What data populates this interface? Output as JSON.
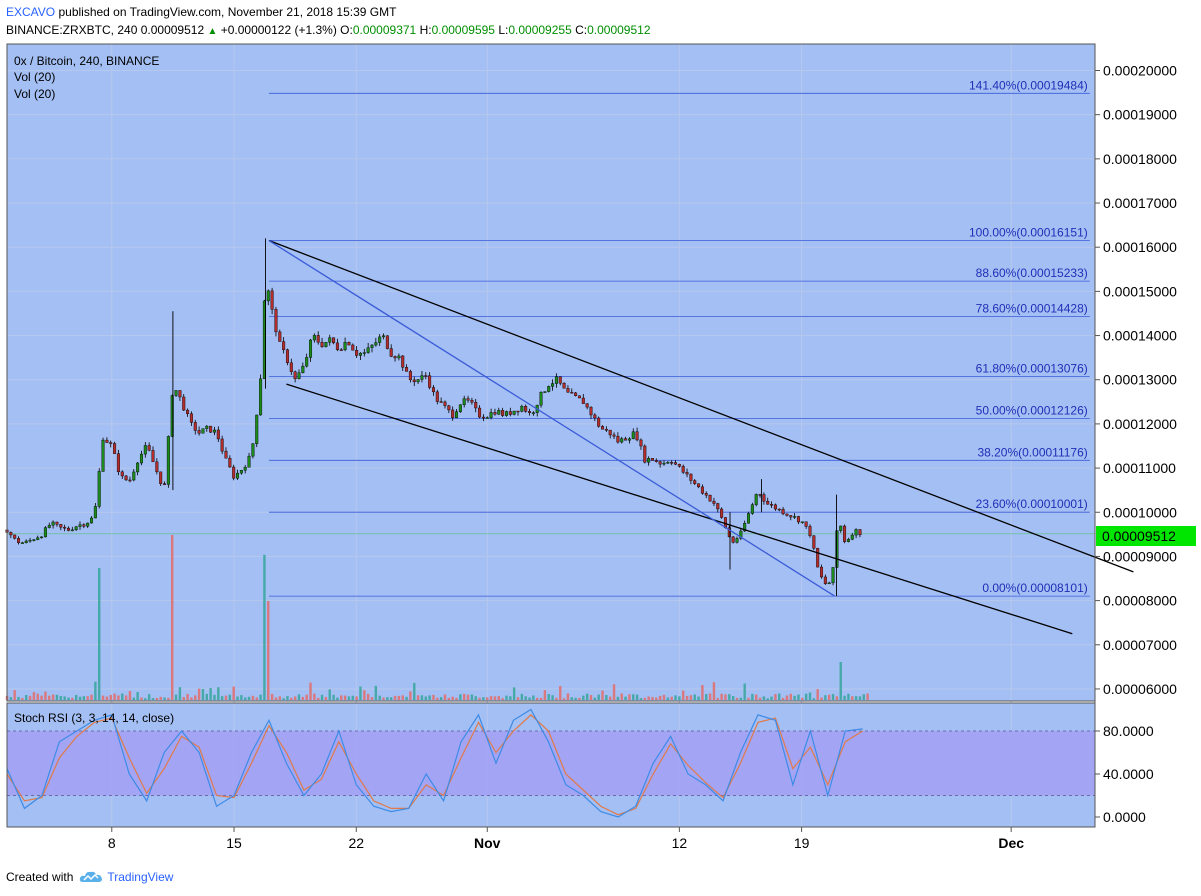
{
  "header": {
    "author": "EXCAVO",
    "published": "published on TradingView.com, November 21, 2018 15:39 GMT",
    "symbol": "BINANCE:ZRXBTC, 240",
    "price": "0.00009512",
    "change": "+0.00000122 (+1.3%)",
    "o_label": "O:",
    "o_value": "0.00009371",
    "h_label": "H:",
    "h_value": "0.00009595",
    "l_label": "L:",
    "l_value": "0.00009255",
    "c_label": "C:",
    "c_value": "0.00009512",
    "up_icon": "triangle-up-icon"
  },
  "legend": {
    "title": "0x / Bitcoin, 240, BINANCE",
    "vol1": "Vol (20)",
    "vol2": "Vol (20)",
    "rsi": "Stoch RSI (3, 3, 14, 14, close)"
  },
  "footer": {
    "created": "Created with",
    "brand": "TradingView",
    "logo_icon": "tradingview-cloud-icon"
  },
  "colors": {
    "background": "#a4bff3",
    "up": "#1b8a1b",
    "down": "#b32d2d",
    "fib": "#3a5bd8",
    "price_tag": "#00e600",
    "rsi_band": "#a3a0f3",
    "stoch_k": "#3d8be6",
    "stoch_d": "#e07a4a"
  },
  "chart_data": {
    "type": "candlestick",
    "y_axis": [
      "0.00020000",
      "0.00019000",
      "0.00018000",
      "0.00017000",
      "0.00016000",
      "0.00015000",
      "0.00014000",
      "0.00013000",
      "0.00012000",
      "0.00011000",
      "0.00010000",
      "0.00009000",
      "0.00008000",
      "0.00007000",
      "0.00006000"
    ],
    "ylim": [
      5.75e-05,
      0.000206
    ],
    "x_axis": [
      {
        "label": "8",
        "pos": 6
      },
      {
        "label": "15",
        "pos": 13
      },
      {
        "label": "22",
        "pos": 20
      },
      {
        "label": "Nov",
        "pos": 27.5
      },
      {
        "label": "12",
        "pos": 38.5
      },
      {
        "label": "19",
        "pos": 45.5
      },
      {
        "label": "Dec",
        "pos": 57.5
      }
    ],
    "last_price": "0.00009512",
    "last_price_value": 9.512e-05,
    "fibonacci": [
      {
        "label": "141.40%(0.00019484)",
        "value": 0.00019484
      },
      {
        "label": "100.00%(0.00016151)",
        "value": 0.00016151
      },
      {
        "label": "88.60%(0.00015233)",
        "value": 0.00015233
      },
      {
        "label": "78.60%(0.00014428)",
        "value": 0.00014428
      },
      {
        "label": "61.80%(0.00013076)",
        "value": 0.00013076
      },
      {
        "label": "50.00%(0.00012126)",
        "value": 0.00012126
      },
      {
        "label": "38.20%(0.00011176)",
        "value": 0.00011176
      },
      {
        "label": "23.60%(0.00010001)",
        "value": 0.00010001
      },
      {
        "label": "0.00%(0.00008101)",
        "value": 8.101e-05
      }
    ],
    "price_path": [
      [
        0,
        9.6e-05
      ],
      [
        0.5,
        9.35e-05
      ],
      [
        1,
        9.3e-05
      ],
      [
        1.5,
        9.4e-05
      ],
      [
        2,
        9.5e-05
      ],
      [
        2.5,
        9.75e-05
      ],
      [
        3,
        9.65e-05
      ],
      [
        3.5,
        9.6e-05
      ],
      [
        4,
        9.7e-05
      ],
      [
        4.5,
        9.75e-05
      ],
      [
        5,
        9.9e-05
      ],
      [
        5.5,
        0.000117
      ],
      [
        6,
        0.000115
      ],
      [
        6.5,
        0.000108
      ],
      [
        7,
        0.000107
      ],
      [
        7.5,
        0.000112
      ],
      [
        8,
        0.000115
      ],
      [
        8.5,
        0.00011
      ],
      [
        9,
        0.000105
      ],
      [
        9.5,
        0.000129
      ],
      [
        10,
        0.000125
      ],
      [
        10.5,
        0.00012
      ],
      [
        11,
        0.000118
      ],
      [
        11.5,
        0.000119
      ],
      [
        12,
        0.000118
      ],
      [
        12.5,
        0.000112
      ],
      [
        13,
        0.000108
      ],
      [
        13.5,
        0.00011
      ],
      [
        14,
        0.000113
      ],
      [
        14.5,
        0.000129
      ],
      [
        14.8,
        0.000153
      ],
      [
        15.2,
        0.000145
      ],
      [
        15.6,
        0.000138
      ],
      [
        16,
        0.000135
      ],
      [
        16.5,
        0.00013
      ],
      [
        17,
        0.000133
      ],
      [
        17.5,
        0.00014
      ],
      [
        18,
        0.000138
      ],
      [
        18.5,
        0.000139
      ],
      [
        19,
        0.000137
      ],
      [
        19.5,
        0.000139
      ],
      [
        20,
        0.000136
      ],
      [
        20.5,
        0.000136
      ],
      [
        21,
        0.000138
      ],
      [
        21.5,
        0.00014
      ],
      [
        22,
        0.000136
      ],
      [
        22.5,
        0.000135
      ],
      [
        23,
        0.00013
      ],
      [
        23.5,
        0.00013
      ],
      [
        24,
        0.000131
      ],
      [
        24.5,
        0.000126
      ],
      [
        25,
        0.000124
      ],
      [
        25.5,
        0.000122
      ],
      [
        26,
        0.000125
      ],
      [
        26.5,
        0.000125
      ],
      [
        27,
        0.000122
      ],
      [
        27.5,
        0.000122
      ],
      [
        28,
        0.000123
      ],
      [
        28.5,
        0.000122
      ],
      [
        29,
        0.000123
      ],
      [
        29.5,
        0.000124
      ],
      [
        30,
        0.000122
      ],
      [
        30.5,
        0.000126
      ],
      [
        31,
        0.000129
      ],
      [
        31.5,
        0.00013
      ],
      [
        32,
        0.000127
      ],
      [
        32.5,
        0.000126
      ],
      [
        33,
        0.000125
      ],
      [
        33.5,
        0.000122
      ],
      [
        34,
        0.000119
      ],
      [
        34.5,
        0.000118
      ],
      [
        35,
        0.000116
      ],
      [
        35.5,
        0.000117
      ],
      [
        36,
        0.000118
      ],
      [
        36.5,
        0.000112
      ],
      [
        37,
        0.000112
      ],
      [
        37.5,
        0.000111
      ],
      [
        38,
        0.000112
      ],
      [
        38.5,
        0.00011
      ],
      [
        39,
        0.000108
      ],
      [
        39.5,
        0.000106
      ],
      [
        40,
        0.000104
      ],
      [
        40.5,
        0.000102
      ],
      [
        41,
        9.8e-05
      ],
      [
        41.5,
        9.3e-05
      ],
      [
        42,
        9.5e-05
      ],
      [
        42.5,
        0.0001
      ],
      [
        43,
        0.000105
      ],
      [
        43.5,
        0.000102
      ],
      [
        44,
        0.000101
      ],
      [
        44.5,
        0.0001
      ],
      [
        45,
        9.9e-05
      ],
      [
        45.5,
        9.8e-05
      ],
      [
        46,
        9.5e-05
      ],
      [
        46.5,
        8.6e-05
      ],
      [
        47,
        8.3e-05
      ],
      [
        47.3,
        8.7e-05
      ],
      [
        47.6,
        9.9e-05
      ],
      [
        48,
        9.3e-05
      ],
      [
        48.5,
        9.6e-05
      ],
      [
        49,
        9.51e-05
      ]
    ],
    "channel_upper": [
      [
        15,
        0.00016151
      ],
      [
        64.5,
        8.65e-05
      ]
    ],
    "channel_lower": [
      [
        16,
        0.000129
      ],
      [
        61,
        7.25e-05
      ]
    ],
    "fib_diagonal": [
      [
        15,
        0.00016151
      ],
      [
        47.4,
        8.101e-05
      ]
    ],
    "volume_spikes": [
      [
        5.3,
        0.8
      ],
      [
        9.5,
        1.0
      ],
      [
        14.7,
        0.88
      ],
      [
        14.9,
        0.6
      ],
      [
        47.7,
        0.23
      ],
      [
        42.3,
        0.1
      ]
    ],
    "stoch_rsi": {
      "ticks": [
        "80.0000",
        "40.0000",
        "0.0000"
      ],
      "band": [
        20,
        80
      ],
      "k": [
        [
          0,
          45
        ],
        [
          1,
          8
        ],
        [
          2,
          20
        ],
        [
          3,
          70
        ],
        [
          4,
          80
        ],
        [
          5,
          90
        ],
        [
          6,
          95
        ],
        [
          7,
          40
        ],
        [
          8,
          15
        ],
        [
          9,
          60
        ],
        [
          10,
          80
        ],
        [
          11,
          60
        ],
        [
          12,
          10
        ],
        [
          13,
          20
        ],
        [
          14,
          60
        ],
        [
          15,
          90
        ],
        [
          16,
          50
        ],
        [
          17,
          20
        ],
        [
          18,
          40
        ],
        [
          19,
          80
        ],
        [
          20,
          30
        ],
        [
          21,
          10
        ],
        [
          22,
          5
        ],
        [
          23,
          8
        ],
        [
          24,
          40
        ],
        [
          25,
          15
        ],
        [
          26,
          70
        ],
        [
          27,
          95
        ],
        [
          28,
          50
        ],
        [
          29,
          90
        ],
        [
          30,
          100
        ],
        [
          31,
          70
        ],
        [
          32,
          30
        ],
        [
          33,
          20
        ],
        [
          34,
          5
        ],
        [
          35,
          0
        ],
        [
          36,
          10
        ],
        [
          37,
          50
        ],
        [
          38,
          75
        ],
        [
          39,
          40
        ],
        [
          40,
          30
        ],
        [
          41,
          15
        ],
        [
          42,
          60
        ],
        [
          43,
          95
        ],
        [
          44,
          90
        ],
        [
          45,
          30
        ],
        [
          46,
          80
        ],
        [
          47,
          20
        ],
        [
          48,
          80
        ],
        [
          49,
          82
        ]
      ],
      "d": [
        [
          0,
          40
        ],
        [
          1,
          15
        ],
        [
          2,
          18
        ],
        [
          3,
          55
        ],
        [
          4,
          75
        ],
        [
          5,
          88
        ],
        [
          6,
          92
        ],
        [
          7,
          55
        ],
        [
          8,
          22
        ],
        [
          9,
          45
        ],
        [
          10,
          75
        ],
        [
          11,
          65
        ],
        [
          12,
          20
        ],
        [
          13,
          18
        ],
        [
          14,
          50
        ],
        [
          15,
          85
        ],
        [
          16,
          60
        ],
        [
          17,
          25
        ],
        [
          18,
          35
        ],
        [
          19,
          70
        ],
        [
          20,
          40
        ],
        [
          21,
          15
        ],
        [
          22,
          8
        ],
        [
          23,
          8
        ],
        [
          24,
          30
        ],
        [
          25,
          20
        ],
        [
          26,
          55
        ],
        [
          27,
          88
        ],
        [
          28,
          60
        ],
        [
          29,
          80
        ],
        [
          30,
          95
        ],
        [
          31,
          80
        ],
        [
          32,
          40
        ],
        [
          33,
          25
        ],
        [
          34,
          10
        ],
        [
          35,
          2
        ],
        [
          36,
          8
        ],
        [
          37,
          40
        ],
        [
          38,
          68
        ],
        [
          39,
          48
        ],
        [
          40,
          32
        ],
        [
          41,
          18
        ],
        [
          42,
          50
        ],
        [
          43,
          88
        ],
        [
          44,
          92
        ],
        [
          45,
          45
        ],
        [
          46,
          65
        ],
        [
          47,
          30
        ],
        [
          48,
          70
        ],
        [
          49,
          80
        ]
      ]
    }
  }
}
